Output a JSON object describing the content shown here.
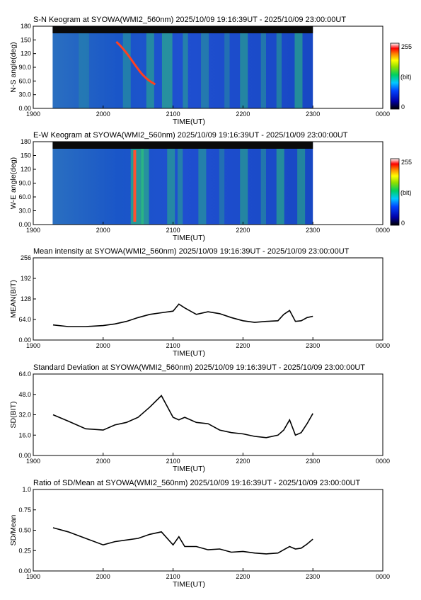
{
  "panels": [
    {
      "id": "sn-keogram",
      "title": "S-N Keogram at SYOWA(WMI2_560nm)",
      "time_range": "2025/10/09 19:16:39UT - 2025/10/09 23:00:00UT",
      "ylabel": "N-S angle(deg)",
      "xlabel": "TIME(UT)",
      "y_ticks": [
        "0.00",
        "30.0",
        "60.0",
        "90.0",
        "120",
        "150",
        "180"
      ],
      "x_ticks": [
        "1900",
        "2000",
        "2100",
        "2200",
        "2300",
        "0000"
      ]
    },
    {
      "id": "ew-keogram",
      "title": "E-W Keogram at SYOWA(WMI2_560nm)",
      "time_range": "2025/10/09 19:16:39UT - 2025/10/09 23:00:00UT",
      "ylabel": "W-E angle(deg)",
      "xlabel": "TIME(UT)",
      "y_ticks": [
        "0.00",
        "30.0",
        "60.0",
        "90.0",
        "120",
        "150",
        "180"
      ],
      "x_ticks": [
        "1900",
        "2000",
        "2100",
        "2200",
        "2300",
        "0000"
      ]
    },
    {
      "id": "mean",
      "title": "Mean intensity at SYOWA(WMI2_560nm)",
      "time_range": "2025/10/09 19:16:39UT - 2025/10/09 23:00:00UT",
      "ylabel": "MEAN(BIT)",
      "xlabel": "TIME(UT)",
      "y_ticks": [
        "0.00",
        "64.0",
        "128",
        "192",
        "256"
      ],
      "x_ticks": [
        "1900",
        "2000",
        "2100",
        "2200",
        "2300",
        "0000"
      ]
    },
    {
      "id": "sd",
      "title": "Standard Deviation at SYOWA(WMI2_560nm)",
      "time_range": "2025/10/09 19:16:39UT - 2025/10/09 23:00:00UT",
      "ylabel": "SD(BIT)",
      "xlabel": "TIME(UT)",
      "y_ticks": [
        "0.00",
        "16.0",
        "32.0",
        "48.0",
        "64.0"
      ],
      "x_ticks": [
        "1900",
        "2000",
        "2100",
        "2200",
        "2300",
        "0000"
      ]
    },
    {
      "id": "ratio",
      "title": "Ratio of SD/Mean at SYOWA(WMI2_560nm)",
      "time_range": "2025/10/09 19:16:39UT - 2025/10/09 23:00:00UT",
      "ylabel": "SD/Mean",
      "xlabel": "TIME(UT)",
      "y_ticks": [
        "0.00",
        "0.25",
        "0.50",
        "0.75",
        "1.0"
      ],
      "x_ticks": [
        "1900",
        "2000",
        "2100",
        "2200",
        "2300",
        "0000"
      ]
    }
  ],
  "colorbar": {
    "max_label": "255",
    "unit_label": "(bit)",
    "min_label": "0"
  },
  "colors": {
    "line": "#000000",
    "keogram_low": "#0000a0",
    "keogram_high": "#ffffff"
  },
  "chart_data": [
    {
      "type": "heatmap",
      "title": "S-N Keogram at SYOWA(WMI2_560nm)",
      "xlabel": "TIME(UT)",
      "ylabel": "N-S angle(deg)",
      "x_range_ut": [
        "19:00",
        "24:00"
      ],
      "data_range_ut": [
        "19:16:39",
        "23:00:00"
      ],
      "ylim": [
        0,
        180
      ],
      "zlim": [
        0,
        255
      ],
      "colormap": "blue-green-yellow-red-white"
    },
    {
      "type": "heatmap",
      "title": "E-W Keogram at SYOWA(WMI2_560nm)",
      "xlabel": "TIME(UT)",
      "ylabel": "W-E angle(deg)",
      "x_range_ut": [
        "19:00",
        "24:00"
      ],
      "data_range_ut": [
        "19:16:39",
        "23:00:00"
      ],
      "ylim": [
        0,
        180
      ],
      "zlim": [
        0,
        255
      ],
      "colormap": "blue-green-yellow-red-white"
    },
    {
      "type": "line",
      "title": "Mean intensity at SYOWA(WMI2_560nm)",
      "xlabel": "TIME(UT)",
      "ylabel": "MEAN(BIT)",
      "ylim": [
        0,
        256
      ],
      "x": [
        "19:17",
        "19:30",
        "19:45",
        "20:00",
        "20:10",
        "20:20",
        "20:30",
        "20:40",
        "20:50",
        "21:00",
        "21:05",
        "21:10",
        "21:20",
        "21:30",
        "21:40",
        "21:50",
        "22:00",
        "22:10",
        "22:20",
        "22:30",
        "22:35",
        "22:40",
        "22:45",
        "22:50",
        "22:55",
        "23:00"
      ],
      "y": [
        47,
        42,
        42,
        45,
        50,
        58,
        70,
        80,
        85,
        90,
        112,
        100,
        80,
        88,
        82,
        70,
        60,
        55,
        58,
        60,
        80,
        92,
        58,
        60,
        70,
        74
      ]
    },
    {
      "type": "line",
      "title": "Standard Deviation at SYOWA(WMI2_560nm)",
      "xlabel": "TIME(UT)",
      "ylabel": "SD(BIT)",
      "ylim": [
        0,
        64
      ],
      "x": [
        "19:17",
        "19:30",
        "19:45",
        "20:00",
        "20:10",
        "20:20",
        "20:30",
        "20:40",
        "20:50",
        "21:00",
        "21:05",
        "21:10",
        "21:20",
        "21:30",
        "21:40",
        "21:50",
        "22:00",
        "22:10",
        "22:20",
        "22:30",
        "22:35",
        "22:40",
        "22:45",
        "22:50",
        "22:55",
        "23:00"
      ],
      "y": [
        32,
        27,
        21,
        20,
        24,
        26,
        30,
        38,
        47,
        30,
        28,
        30,
        26,
        25,
        20,
        18,
        17,
        15,
        14,
        16,
        20,
        28,
        16,
        18,
        25,
        33
      ]
    },
    {
      "type": "line",
      "title": "Ratio of SD/Mean at SYOWA(WMI2_560nm)",
      "xlabel": "TIME(UT)",
      "ylabel": "SD/Mean",
      "ylim": [
        0,
        1.0
      ],
      "x": [
        "19:17",
        "19:30",
        "19:45",
        "20:00",
        "20:10",
        "20:20",
        "20:30",
        "20:40",
        "20:50",
        "21:00",
        "21:05",
        "21:10",
        "21:20",
        "21:30",
        "21:40",
        "21:50",
        "22:00",
        "22:10",
        "22:20",
        "22:30",
        "22:35",
        "22:40",
        "22:45",
        "22:50",
        "22:55",
        "23:00"
      ],
      "y": [
        0.53,
        0.48,
        0.4,
        0.32,
        0.36,
        0.38,
        0.4,
        0.45,
        0.48,
        0.32,
        0.42,
        0.3,
        0.3,
        0.26,
        0.27,
        0.23,
        0.24,
        0.22,
        0.21,
        0.22,
        0.26,
        0.3,
        0.27,
        0.28,
        0.33,
        0.39
      ]
    }
  ]
}
